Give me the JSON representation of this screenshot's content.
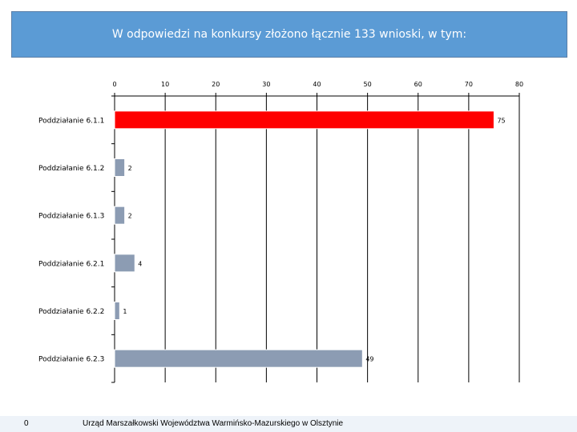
{
  "slide": {
    "title": "W odpowiedzi na konkursy złożono łącznie 133 wnioski, w tym:",
    "slide_number": "0",
    "footer": "Urząd Marszałkowski Województwa Warmińsko-Mazurskiego w Olsztynie"
  },
  "chart_data": {
    "type": "bar",
    "orientation": "horizontal",
    "categories": [
      "Poddziałanie 6.1.1",
      "Poddziałanie 6.1.2",
      "Poddziałanie 6.1.3",
      "Poddziałanie 6.2.1",
      "Poddziałanie 6.2.2",
      "Poddziałanie 6.2.3"
    ],
    "values": [
      75,
      2,
      2,
      4,
      1,
      49
    ],
    "data_labels": [
      "75",
      "2",
      "2",
      "4",
      "1",
      "49"
    ],
    "xlim": [
      0,
      80
    ],
    "x_ticks": [
      0,
      10,
      20,
      30,
      40,
      50,
      60,
      70,
      80
    ],
    "x_tick_labels": [
      "0",
      "10",
      "20",
      "30",
      "40",
      "50",
      "60",
      "70",
      "80"
    ],
    "axis_position": "top",
    "grid": true,
    "colors": {
      "highlight": "#ff0000",
      "bar": "#8c9cb3",
      "grid": "#000000"
    },
    "highlight_index": 0
  }
}
